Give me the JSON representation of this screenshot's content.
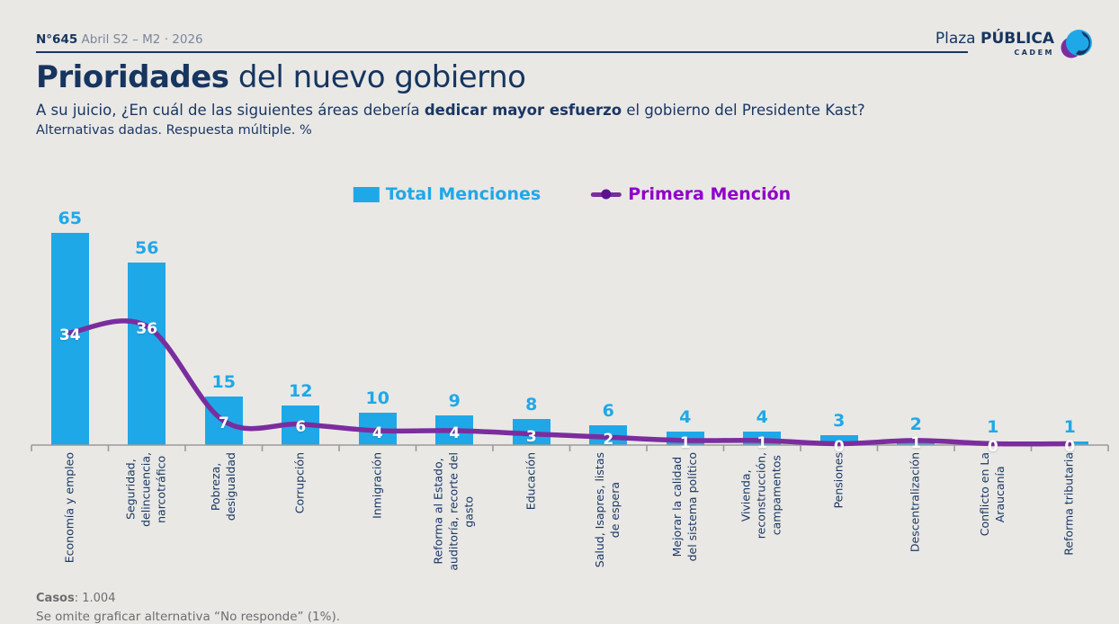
{
  "header": {
    "issue": "N°645",
    "date": " Abril S2 – M2 · 2026"
  },
  "logo": {
    "plaza": "Plaza ",
    "publica": "PÚBLICA",
    "cadem": "CADEM"
  },
  "title": {
    "bold": "Prioridades",
    "rest": " del nuevo gobierno"
  },
  "subtitle": {
    "pre": "A su juicio, ¿En cuál de las siguientes áreas debería ",
    "bold": "dedicar mayor esfuerzo",
    "post": " el gobierno del Presidente Kast?"
  },
  "note": "Alternativas dadas. Respuesta múltiple. %",
  "footer": {
    "cases_label": "Casos",
    "cases_value": ": 1.004",
    "omit_note": "Se omite graficar alternativa “No responde” (1%)."
  },
  "colors": {
    "background": "#E9E8E5",
    "navy": "#16355F",
    "axis": "#9B9B9B",
    "bar_cyan": "#1FA8E8",
    "line_purple": "#7B2D9E",
    "legend_line_text": "#8F00C8",
    "legend_dot": "#5C1191"
  },
  "chart_data": {
    "type": "bar",
    "title": "Prioridades del nuevo gobierno",
    "xlabel": "",
    "ylabel": "%",
    "ylim": [
      0,
      70
    ],
    "grid": false,
    "legend_position": "top-center",
    "categories": [
      "Economía y empleo",
      "Seguridad,\ndelincuencia,\nnarcotráfico",
      "Pobreza,\ndesigualdad",
      "Corrupción",
      "Inmigración",
      "Reforma al Estado,\nauditoría, recorte del\ngasto",
      "Educación",
      "Salud, Isapres, listas\nde espera",
      "Mejorar la calidad\ndel sistema político",
      "Vivienda,\nreconstrucción,\ncampamentos",
      "Pensiones",
      "Descentralización",
      "Conflicto en La\nAraucanía",
      "Reforma tributaria"
    ],
    "series": [
      {
        "name": "Total Menciones",
        "type": "bar",
        "color": "#1FA8E8",
        "text_color": "#1FA8E8",
        "values": [
          65,
          56,
          15,
          12,
          10,
          9,
          8,
          6,
          4,
          4,
          3,
          2,
          1,
          1
        ]
      },
      {
        "name": "Primera Mención",
        "type": "line",
        "color": "#7B2D9E",
        "text_color": "#8F00C8",
        "values": [
          34,
          36,
          7,
          6,
          4,
          4,
          3,
          2,
          1,
          1,
          0,
          1,
          0,
          0
        ]
      }
    ]
  }
}
